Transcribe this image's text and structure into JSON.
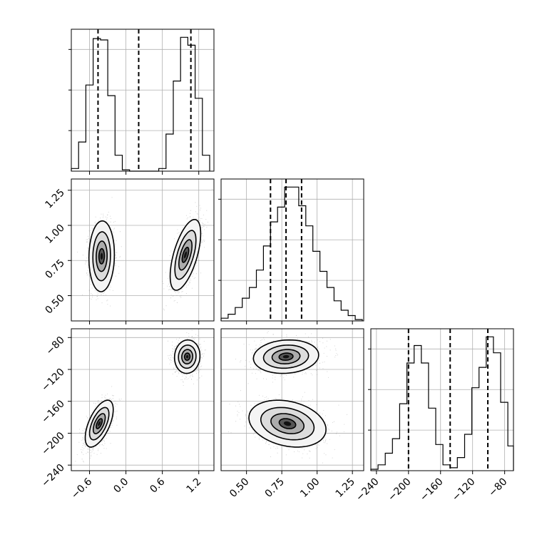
{
  "chart_data": {
    "type": "corner",
    "parameters": [
      {
        "ticks": [
          -0.6,
          0.0,
          0.6,
          1.2
        ],
        "tick_labels": [
          "−0.6",
          "0.0",
          "0.6",
          "1.2"
        ],
        "range": [
          -0.9,
          1.45
        ]
      },
      {
        "ticks": [
          0.5,
          0.75,
          1.0,
          1.25
        ],
        "tick_labels": [
          "0.50",
          "0.75",
          "1.00",
          "1.25"
        ],
        "range": [
          0.32,
          1.33
        ]
      },
      {
        "ticks": [
          -240,
          -200,
          -160,
          -120,
          -80
        ],
        "tick_labels": [
          "−240",
          "−200",
          "−160",
          "−120",
          "−80"
        ],
        "range": [
          -247,
          -69
        ]
      }
    ],
    "histograms": [
      {
        "bin_edges": [
          -0.9,
          -0.78,
          -0.66,
          -0.54,
          -0.42,
          -0.3,
          -0.18,
          -0.06,
          0.06,
          0.18,
          0.3,
          0.42,
          0.54,
          0.66,
          0.78,
          0.9,
          1.02,
          1.14,
          1.26,
          1.38
        ],
        "counts": [
          2,
          22,
          65,
          100,
          99,
          57,
          12,
          1,
          0,
          0,
          0,
          0,
          2,
          28,
          68,
          101,
          95,
          55,
          12
        ],
        "quantiles": [
          -0.46,
          0.21,
          1.07
        ]
      },
      {
        "bin_edges": [
          0.32,
          0.37,
          0.42,
          0.47,
          0.52,
          0.57,
          0.62,
          0.67,
          0.72,
          0.77,
          0.82,
          0.87,
          0.92,
          0.97,
          1.02,
          1.07,
          1.12,
          1.17,
          1.22,
          1.27,
          1.32
        ],
        "counts": [
          2,
          5,
          10,
          17,
          25,
          38,
          56,
          74,
          85,
          100,
          100,
          86,
          71,
          52,
          37,
          25,
          15,
          8,
          4,
          1
        ],
        "quantiles": [
          0.67,
          0.78,
          0.89
        ]
      },
      {
        "bin_edges": [
          -247,
          -238,
          -229,
          -220,
          -211,
          -202,
          -193,
          -184,
          -175,
          -166,
          -157,
          -148,
          -139,
          -130,
          -121,
          -112,
          -103,
          -94,
          -85,
          -76,
          -69
        ],
        "counts": [
          1,
          4,
          12,
          22,
          46,
          74,
          86,
          74,
          43,
          18,
          4,
          2,
          9,
          25,
          57,
          71,
          92,
          81,
          47,
          17
        ],
        "quantiles": [
          -200,
          -148,
          -101
        ]
      }
    ],
    "scatter_pairs": [
      {
        "x_param": 0,
        "y_param": 1,
        "blobs": [
          {
            "mx": -0.4,
            "my": 0.78,
            "sx": 0.1,
            "sy": 0.12,
            "rho": 0.05
          },
          {
            "mx": 0.98,
            "my": 0.79,
            "sx": 0.12,
            "sy": 0.12,
            "rho": 0.6
          }
        ]
      },
      {
        "x_param": 0,
        "y_param": 2,
        "blobs": [
          {
            "mx": -0.44,
            "my": -188,
            "sx": 0.11,
            "sy": 14,
            "rho": 0.6
          },
          {
            "mx": 1.01,
            "my": -104,
            "sx": 0.1,
            "sy": 10,
            "rho": 0.05
          }
        ]
      },
      {
        "x_param": 1,
        "y_param": 2,
        "blobs": [
          {
            "mx": 0.78,
            "my": -104,
            "sx": 0.11,
            "sy": 10,
            "rho": 0.1
          },
          {
            "mx": 0.79,
            "my": -188,
            "sx": 0.13,
            "sy": 14,
            "rho": -0.25
          }
        ]
      }
    ]
  }
}
